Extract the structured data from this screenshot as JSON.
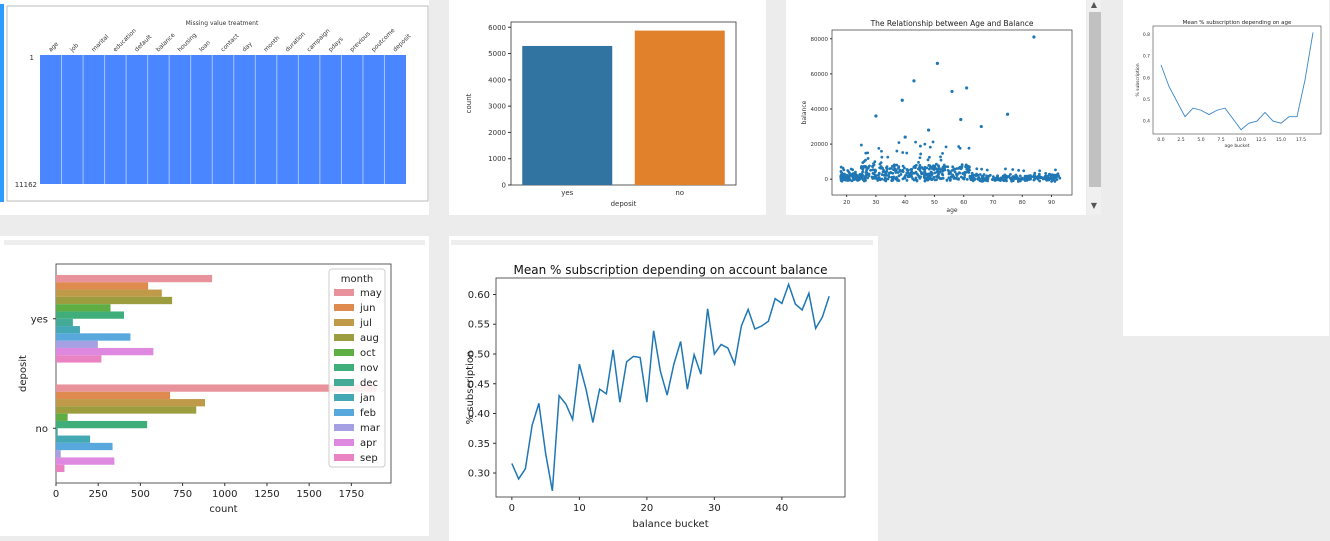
{
  "scrollbar": {
    "up_arrow": "▲",
    "down_arrow": "▼"
  },
  "panels": {
    "missing": {
      "title": "Missing value treatment",
      "columns": [
        "age",
        "job",
        "marital",
        "education",
        "default",
        "balance",
        "housing",
        "loan",
        "contact",
        "day",
        "month",
        "duration",
        "campaign",
        "pdays",
        "previous",
        "poutcome",
        "deposit"
      ],
      "row_top": "1",
      "row_bottom": "11162",
      "fill_color": "#4a86ff"
    },
    "deposit_counts": {
      "chart_data": {
        "type": "bar",
        "categories": [
          "yes",
          "no"
        ],
        "values": [
          5289,
          5873
        ],
        "xlabel": "deposit",
        "ylabel": "count",
        "yticks": [
          0,
          1000,
          2000,
          3000,
          4000,
          5000,
          6000
        ],
        "colors": [
          "#3274a1",
          "#e1812c"
        ]
      }
    },
    "age_balance": {
      "chart_data": {
        "type": "scatter",
        "title": "The Relationship between Age and Balance",
        "xlabel": "age",
        "ylabel": "balance",
        "xticks": [
          20,
          30,
          40,
          50,
          60,
          70,
          80,
          90
        ],
        "yticks": [
          0,
          20000,
          40000,
          60000,
          80000
        ],
        "color": "#1f77b4",
        "outliers": [
          [
            84,
            81000
          ],
          [
            51,
            66000
          ],
          [
            43,
            56000
          ],
          [
            61,
            52000
          ],
          [
            56,
            50000
          ],
          [
            39,
            45000
          ],
          [
            48,
            28000
          ],
          [
            40,
            24000
          ],
          [
            75,
            37000
          ],
          [
            30,
            36000
          ],
          [
            59,
            34000
          ],
          [
            66,
            30000
          ]
        ]
      }
    },
    "age_subscription": {
      "chart_data": {
        "type": "line",
        "title": "Mean % subscription depending on age",
        "xlabel": "age bucket",
        "ylabel": "% subscription",
        "xticks": [
          0,
          2.5,
          5,
          7.5,
          10,
          12.5,
          15,
          17.5
        ],
        "yticks": [
          0.4,
          0.5,
          0.6,
          0.7,
          0.8
        ],
        "x": [
          0,
          1,
          2,
          3,
          4,
          5,
          6,
          7,
          8,
          9,
          10,
          11,
          12,
          13,
          14,
          15,
          16,
          17,
          18,
          19
        ],
        "values": [
          0.66,
          0.56,
          0.49,
          0.42,
          0.46,
          0.45,
          0.43,
          0.45,
          0.46,
          0.41,
          0.36,
          0.39,
          0.4,
          0.44,
          0.4,
          0.39,
          0.42,
          0.42,
          0.59,
          0.81
        ]
      }
    },
    "month_deposit": {
      "chart_data": {
        "type": "bar",
        "orientation": "horizontal",
        "categories": [
          "yes",
          "no"
        ],
        "xlabel": "count",
        "ylabel": "deposit",
        "xticks": [
          0,
          250,
          500,
          750,
          1000,
          1250,
          1500,
          1750
        ],
        "legend_title": "month",
        "series": [
          {
            "name": "may",
            "color": "#e8939c",
            "values": [
              925,
              1899
            ]
          },
          {
            "name": "jun",
            "color": "#df8a4f",
            "values": [
              546,
              676
            ]
          },
          {
            "name": "jul",
            "color": "#bf9a49",
            "values": [
              627,
              883
            ]
          },
          {
            "name": "aug",
            "color": "#9b9d3f",
            "values": [
              688,
              831
            ]
          },
          {
            "name": "oct",
            "color": "#5fae44",
            "values": [
              323,
              69
            ]
          },
          {
            "name": "nov",
            "color": "#3fae7a",
            "values": [
              403,
              540
            ]
          },
          {
            "name": "dec",
            "color": "#43aa97",
            "values": [
              100,
              10
            ]
          },
          {
            "name": "jan",
            "color": "#44a9b4",
            "values": [
              142,
              202
            ]
          },
          {
            "name": "feb",
            "color": "#57a8dc",
            "values": [
              441,
              335
            ]
          },
          {
            "name": "mar",
            "color": "#a59fe3",
            "values": [
              248,
              28
            ]
          },
          {
            "name": "apr",
            "color": "#df88e0",
            "values": [
              577,
              346
            ]
          },
          {
            "name": "sep",
            "color": "#ea83c4",
            "values": [
              269,
              50
            ]
          }
        ]
      }
    },
    "balance_subscription": {
      "chart_data": {
        "type": "line",
        "title": "Mean % subscription depending on account balance",
        "xlabel": "balance bucket",
        "ylabel": "% subscription",
        "xticks": [
          0,
          10,
          20,
          30,
          40
        ],
        "yticks": [
          0.3,
          0.35,
          0.4,
          0.45,
          0.5,
          0.55,
          0.6
        ],
        "ytick_labels": [
          "0.30",
          "0.35",
          "0.40",
          "0.45",
          "0.50",
          "0.55",
          "0.60"
        ],
        "values": [
          0.316,
          0.29,
          0.307,
          0.38,
          0.417,
          0.333,
          0.27,
          0.43,
          0.416,
          0.39,
          0.483,
          0.44,
          0.385,
          0.441,
          0.433,
          0.507,
          0.419,
          0.487,
          0.496,
          0.494,
          0.419,
          0.539,
          0.471,
          0.431,
          0.483,
          0.521,
          0.441,
          0.499,
          0.466,
          0.576,
          0.5,
          0.516,
          0.51,
          0.483,
          0.547,
          0.575,
          0.542,
          0.547,
          0.555,
          0.593,
          0.585,
          0.617,
          0.584,
          0.574,
          0.602,
          0.543,
          0.562,
          0.597
        ]
      }
    }
  }
}
